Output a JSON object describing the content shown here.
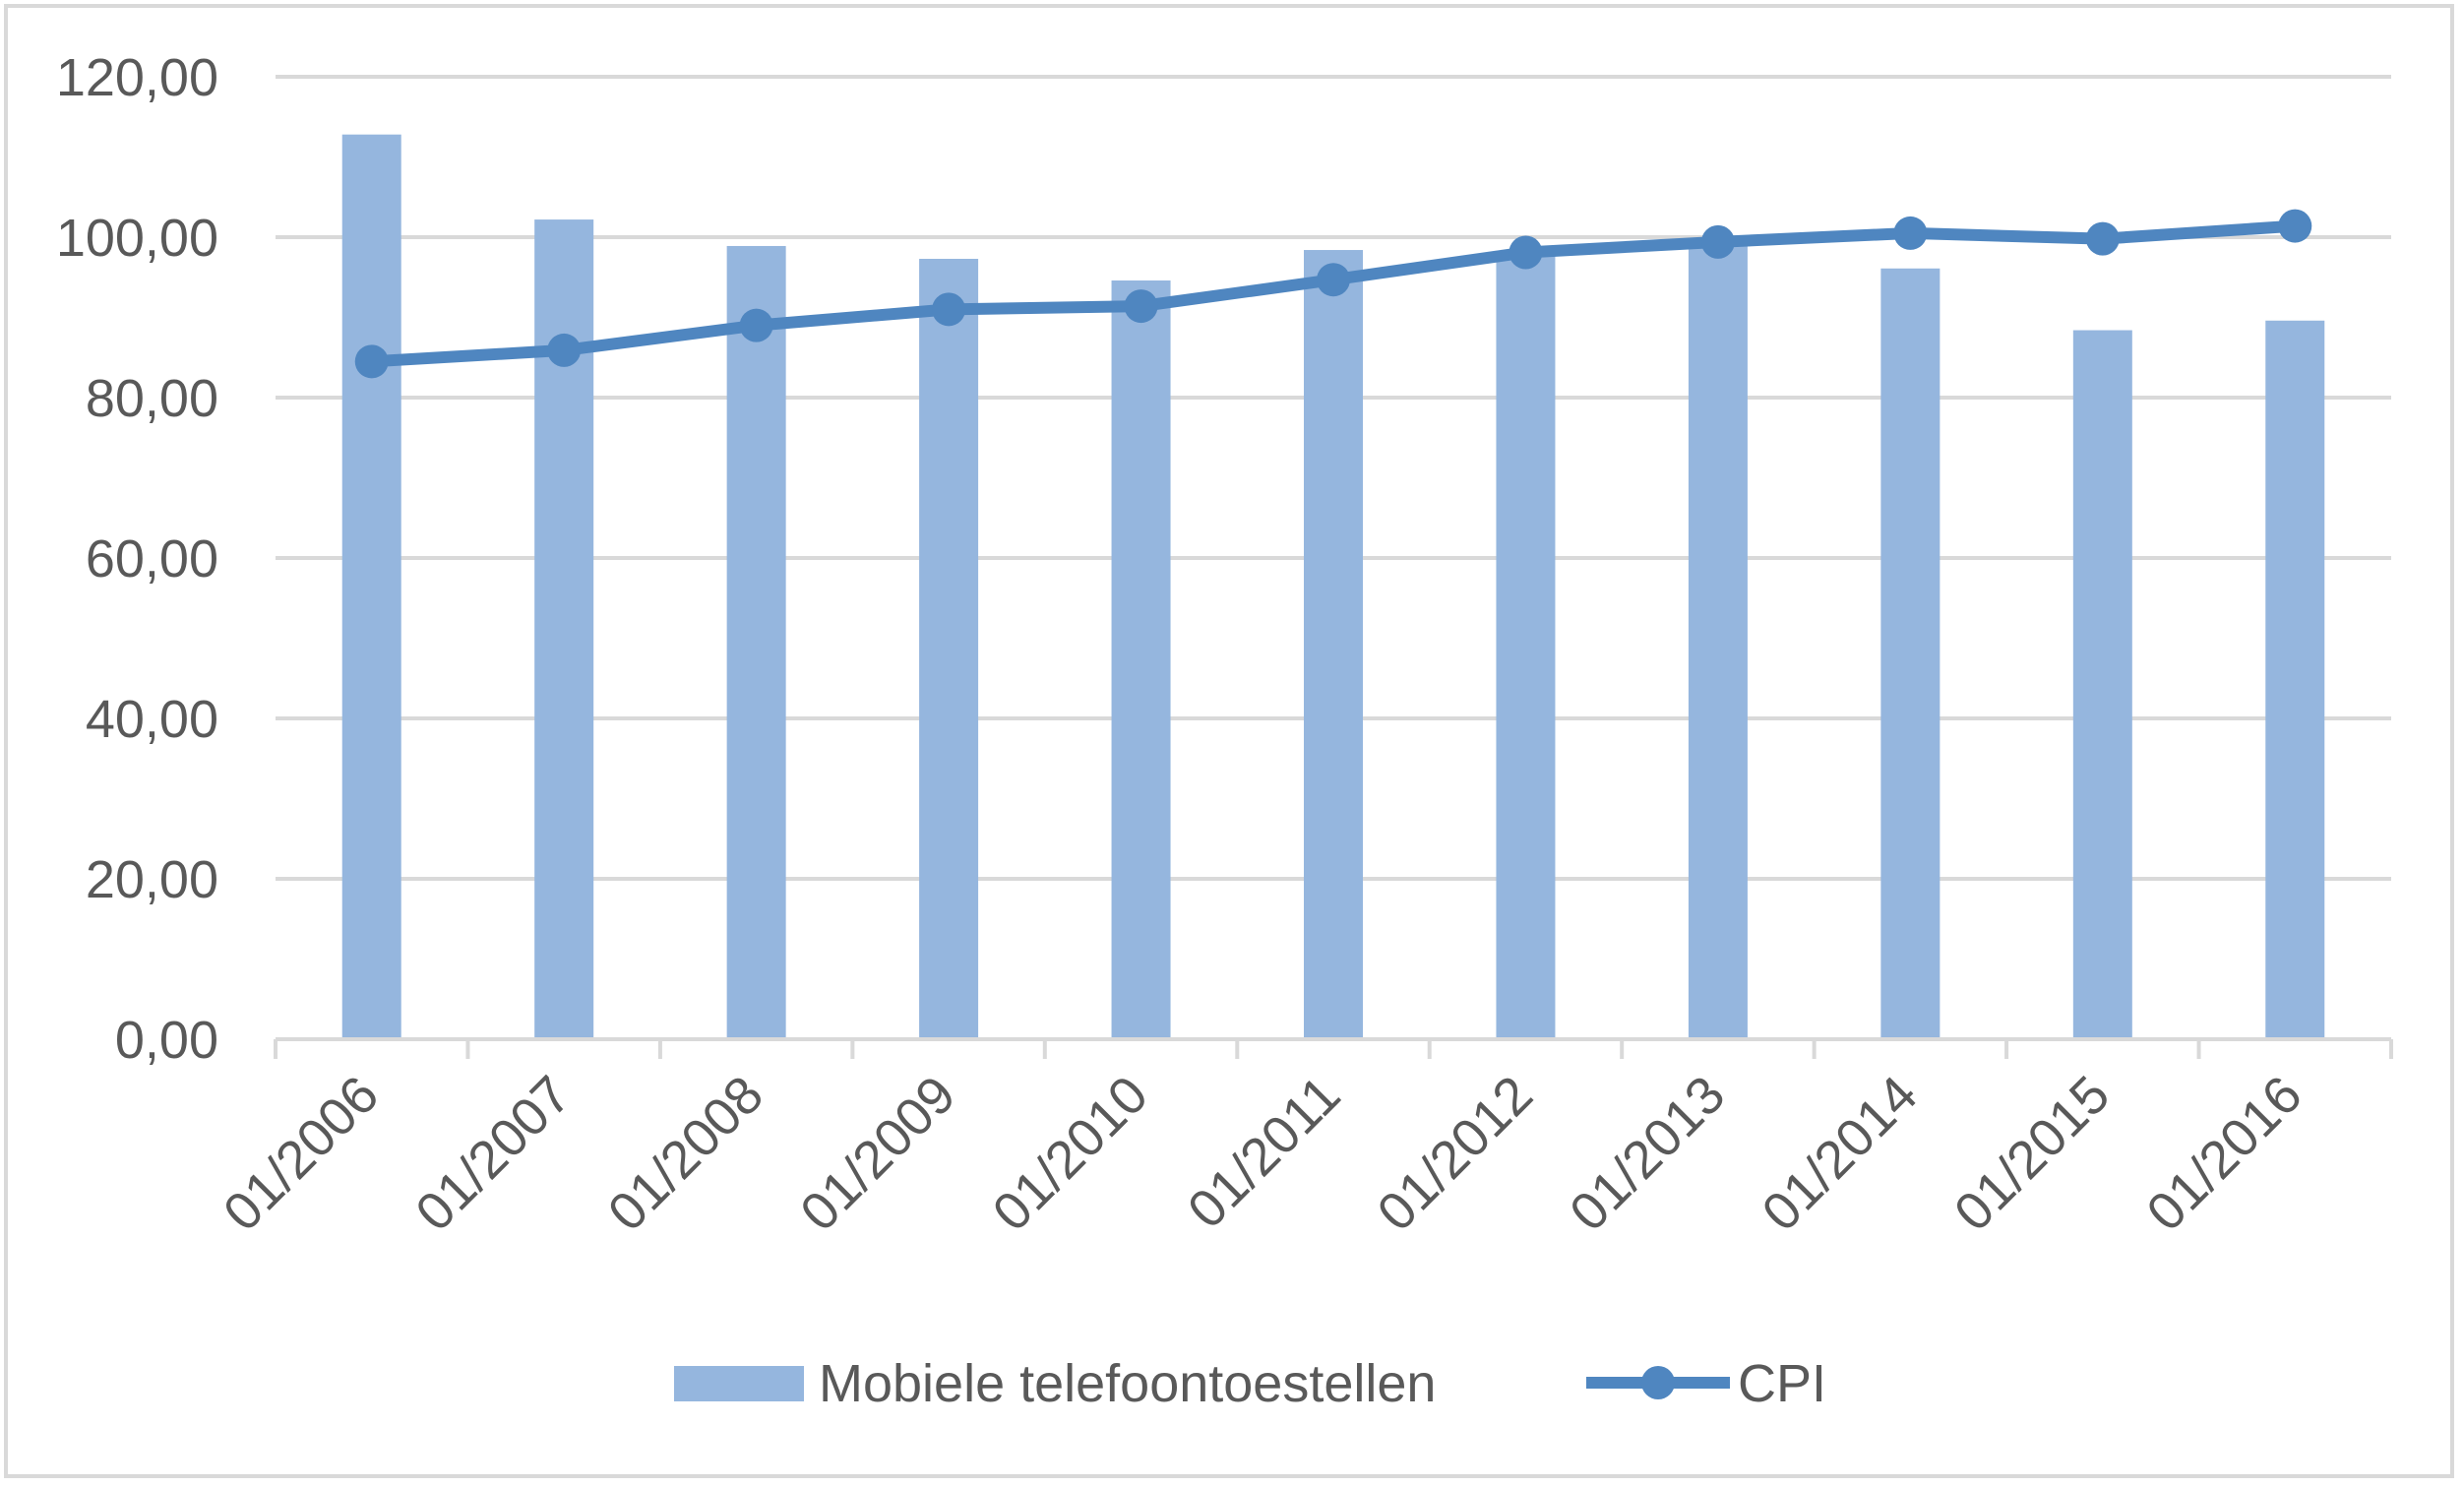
{
  "chart_data": {
    "type": "bar+line",
    "title": "",
    "xlabel": "",
    "ylabel": "",
    "categories": [
      "01/2006",
      "01/2007",
      "01/2008",
      "01/2009",
      "01/2010",
      "01/2011",
      "01/2012",
      "01/2013",
      "01/2014",
      "01/2015",
      "01/2016"
    ],
    "ylim": [
      0,
      120
    ],
    "yticks": [
      "0,00",
      "20,00",
      "40,00",
      "60,00",
      "80,00",
      "100,00",
      "120,00"
    ],
    "grid": true,
    "legend_position": "bottom",
    "series": [
      {
        "name": "Mobiele telefoontoestellen",
        "type": "bar",
        "color": "#95b6de",
        "values": [
          112.8,
          102.2,
          98.9,
          97.3,
          94.6,
          98.4,
          98.0,
          99.7,
          96.1,
          88.4,
          89.6
        ]
      },
      {
        "name": "CPI",
        "type": "line",
        "color": "#4f86c0",
        "values": [
          84.5,
          85.9,
          89.0,
          91.0,
          91.4,
          94.7,
          98.1,
          99.4,
          100.5,
          99.8,
          101.4
        ]
      }
    ]
  }
}
